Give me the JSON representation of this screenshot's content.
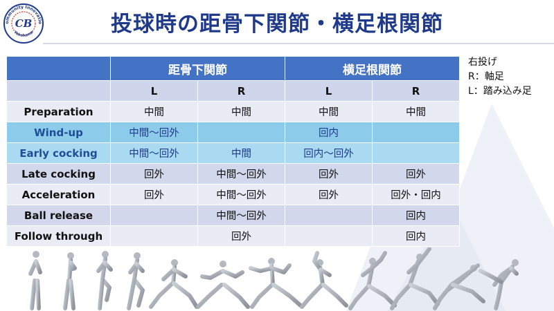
{
  "header": {
    "title": "投球時の距骨下関節・横足根関節",
    "logo_text": "Community Innovation",
    "logo_sub_text": "Yokohama",
    "logo_initials": "CB"
  },
  "note": {
    "lines": [
      "右投げ",
      "R：軸足",
      "L：踏み込み足"
    ]
  },
  "table": {
    "joint_headers": [
      "距骨下関節",
      "横足根関節"
    ],
    "side_headers": [
      "L",
      "R",
      "L",
      "R"
    ],
    "rows": [
      {
        "phase": "Preparation",
        "values": [
          "中間",
          "中間",
          "中間",
          "中間"
        ]
      },
      {
        "phase": "Wind-up",
        "values": [
          "中間〜回外",
          "",
          "回内",
          ""
        ]
      },
      {
        "phase": "Early cocking",
        "values": [
          "中間〜回外",
          "中間",
          "回内〜回外",
          ""
        ]
      },
      {
        "phase": "Late cocking",
        "values": [
          "回外",
          "中間〜回外",
          "回外",
          "回外"
        ]
      },
      {
        "phase": "Acceleration",
        "values": [
          "回外",
          "中間〜回外",
          "回外",
          "回外・回内"
        ]
      },
      {
        "phase": "Ball release",
        "values": [
          "",
          "中間〜回外",
          "",
          "回内"
        ]
      },
      {
        "phase": "Follow through",
        "values": [
          "",
          "回外",
          "",
          "回内"
        ]
      }
    ]
  },
  "colors": {
    "title": "#1f3a8a",
    "header_blue": "#4472c4",
    "highlight_blue": "#8dcbeb"
  },
  "figures": {
    "icon": "pitching-motion-sequence-figures",
    "count": 12
  }
}
